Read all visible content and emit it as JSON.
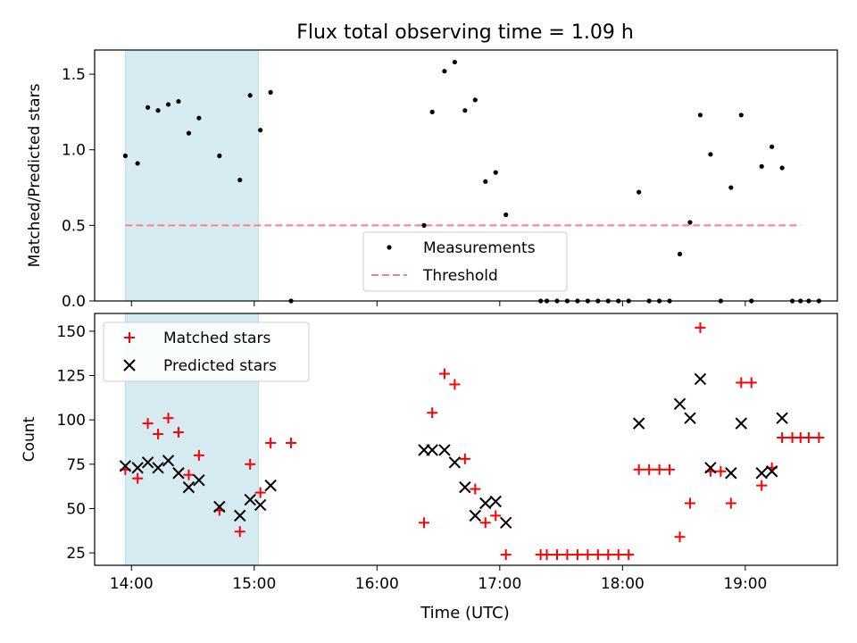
{
  "figure": {
    "title": "Flux total observing time = 1.09 h",
    "xlabel": "Time (UTC)"
  },
  "colors": {
    "shade": "#add8e6",
    "measurements": "#000000",
    "threshold": "#ff7f7f",
    "matched": "#ff0000",
    "predicted": "#000000"
  },
  "chart_data": [
    {
      "type": "scatter",
      "panel": "top",
      "title": "Flux total observing time = 1.09 h",
      "ylabel": "Matched/Predicted stars",
      "xlabel": "",
      "xlim": [
        "13:42",
        "19:45"
      ],
      "ylim": [
        0,
        1.66
      ],
      "x_ticks": [
        "14:00",
        "15:00",
        "16:00",
        "17:00",
        "18:00",
        "19:00"
      ],
      "y_ticks": [
        "0.0",
        "0.5",
        "1.0",
        "1.5"
      ],
      "shaded_span": [
        "13:57",
        "15:02"
      ],
      "legend": {
        "position": "lower center",
        "entries": [
          "Measurements",
          "Threshold"
        ]
      },
      "threshold": {
        "name": "Threshold",
        "value": 0.5,
        "x": [
          "13:57",
          "19:27"
        ]
      },
      "series": [
        {
          "name": "Measurements",
          "points": [
            [
              "13:57",
              0.96
            ],
            [
              "14:03",
              0.91
            ],
            [
              "14:08",
              1.28
            ],
            [
              "14:13",
              1.26
            ],
            [
              "14:18",
              1.3
            ],
            [
              "14:23",
              1.32
            ],
            [
              "14:28",
              1.11
            ],
            [
              "14:33",
              1.21
            ],
            [
              "14:43",
              0.96
            ],
            [
              "14:53",
              0.8
            ],
            [
              "14:58",
              1.36
            ],
            [
              "15:03",
              1.13
            ],
            [
              "15:08",
              1.38
            ],
            [
              "15:18",
              0.0
            ],
            [
              "16:23",
              0.5
            ],
            [
              "16:27",
              1.25
            ],
            [
              "16:33",
              1.52
            ],
            [
              "16:38",
              1.58
            ],
            [
              "16:43",
              1.26
            ],
            [
              "16:48",
              1.33
            ],
            [
              "16:53",
              0.79
            ],
            [
              "16:58",
              0.85
            ],
            [
              "17:03",
              0.57
            ],
            [
              "17:20",
              0.0
            ],
            [
              "17:23",
              0.0
            ],
            [
              "17:28",
              0.0
            ],
            [
              "17:33",
              0.0
            ],
            [
              "17:38",
              0.0
            ],
            [
              "17:43",
              0.0
            ],
            [
              "17:48",
              0.0
            ],
            [
              "17:53",
              0.0
            ],
            [
              "17:58",
              0.0
            ],
            [
              "18:03",
              0.0
            ],
            [
              "18:08",
              0.72
            ],
            [
              "18:13",
              0.0
            ],
            [
              "18:18",
              0.0
            ],
            [
              "18:23",
              0.0
            ],
            [
              "18:28",
              0.31
            ],
            [
              "18:33",
              0.52
            ],
            [
              "18:38",
              1.23
            ],
            [
              "18:43",
              0.97
            ],
            [
              "18:48",
              0.0
            ],
            [
              "18:53",
              0.75
            ],
            [
              "18:58",
              1.23
            ],
            [
              "19:03",
              0.0
            ],
            [
              "19:08",
              0.89
            ],
            [
              "19:13",
              1.02
            ],
            [
              "19:18",
              0.88
            ],
            [
              "19:23",
              0.0
            ],
            [
              "19:27",
              0.0
            ],
            [
              "19:31",
              0.0
            ],
            [
              "19:36",
              0.0
            ]
          ]
        }
      ]
    },
    {
      "type": "scatter",
      "panel": "bottom",
      "title": "",
      "ylabel": "Count",
      "xlabel": "Time (UTC)",
      "xlim": [
        "13:42",
        "19:45"
      ],
      "ylim": [
        18,
        160
      ],
      "x_ticks": [
        "14:00",
        "15:00",
        "16:00",
        "17:00",
        "18:00",
        "19:00"
      ],
      "y_ticks": [
        "25",
        "50",
        "75",
        "100",
        "125",
        "150"
      ],
      "shaded_span": [
        "13:57",
        "15:02"
      ],
      "legend": {
        "position": "upper left",
        "entries": [
          "Matched stars",
          "Predicted stars"
        ]
      },
      "series": [
        {
          "name": "Matched stars",
          "marker": "plus",
          "points": [
            [
              "13:57",
              72
            ],
            [
              "14:03",
              67
            ],
            [
              "14:08",
              98
            ],
            [
              "14:13",
              92
            ],
            [
              "14:18",
              101
            ],
            [
              "14:23",
              93
            ],
            [
              "14:28",
              69
            ],
            [
              "14:33",
              80
            ],
            [
              "14:43",
              49
            ],
            [
              "14:53",
              37
            ],
            [
              "14:58",
              75
            ],
            [
              "15:03",
              59
            ],
            [
              "15:08",
              87
            ],
            [
              "15:18",
              87
            ],
            [
              "16:23",
              42
            ],
            [
              "16:27",
              104
            ],
            [
              "16:33",
              126
            ],
            [
              "16:38",
              120
            ],
            [
              "16:43",
              78
            ],
            [
              "16:48",
              61
            ],
            [
              "16:53",
              42
            ],
            [
              "16:58",
              46
            ],
            [
              "17:03",
              24
            ],
            [
              "17:20",
              24
            ],
            [
              "17:23",
              24
            ],
            [
              "17:28",
              24
            ],
            [
              "17:33",
              24
            ],
            [
              "17:38",
              24
            ],
            [
              "17:43",
              24
            ],
            [
              "17:48",
              24
            ],
            [
              "17:53",
              24
            ],
            [
              "17:58",
              24
            ],
            [
              "18:03",
              24
            ],
            [
              "18:08",
              72
            ],
            [
              "18:13",
              72
            ],
            [
              "18:18",
              72
            ],
            [
              "18:23",
              72
            ],
            [
              "18:28",
              34
            ],
            [
              "18:33",
              53
            ],
            [
              "18:38",
              152
            ],
            [
              "18:43",
              71
            ],
            [
              "18:48",
              71
            ],
            [
              "18:53",
              53
            ],
            [
              "18:58",
              121
            ],
            [
              "19:03",
              121
            ],
            [
              "19:08",
              63
            ],
            [
              "19:13",
              73
            ],
            [
              "19:18",
              90
            ],
            [
              "19:23",
              90
            ],
            [
              "19:27",
              90
            ],
            [
              "19:31",
              90
            ],
            [
              "19:36",
              90
            ]
          ]
        },
        {
          "name": "Predicted stars",
          "marker": "x",
          "points": [
            [
              "13:57",
              74
            ],
            [
              "14:03",
              73
            ],
            [
              "14:08",
              76
            ],
            [
              "14:13",
              73
            ],
            [
              "14:18",
              77
            ],
            [
              "14:23",
              70
            ],
            [
              "14:28",
              62
            ],
            [
              "14:33",
              66
            ],
            [
              "14:43",
              51
            ],
            [
              "14:53",
              46
            ],
            [
              "14:58",
              55
            ],
            [
              "15:03",
              52
            ],
            [
              "15:08",
              63
            ],
            [
              "16:23",
              83
            ],
            [
              "16:27",
              83
            ],
            [
              "16:33",
              83
            ],
            [
              "16:38",
              76
            ],
            [
              "16:43",
              62
            ],
            [
              "16:48",
              46
            ],
            [
              "16:53",
              53
            ],
            [
              "16:58",
              54
            ],
            [
              "17:03",
              42
            ],
            [
              "18:08",
              98
            ],
            [
              "18:28",
              109
            ],
            [
              "18:33",
              101
            ],
            [
              "18:38",
              123
            ],
            [
              "18:43",
              73
            ],
            [
              "18:53",
              70
            ],
            [
              "18:58",
              98
            ],
            [
              "19:08",
              70
            ],
            [
              "19:13",
              71
            ],
            [
              "19:18",
              101
            ]
          ]
        }
      ]
    }
  ]
}
